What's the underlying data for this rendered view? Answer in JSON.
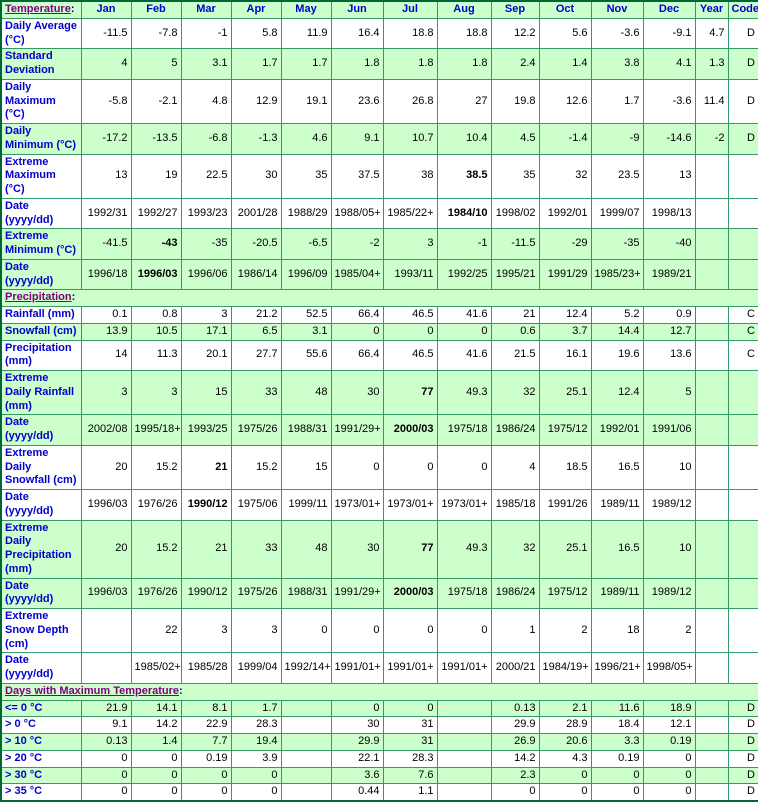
{
  "palette": {
    "row_green": "#CCFFCC",
    "row_white": "#FFFFFF",
    "grid_border": "#339966",
    "outer_border": "#006633",
    "label_blue": "#0000CC",
    "section_link_purple": "#800080",
    "value_black": "#000000"
  },
  "table": {
    "columns": [
      "Jan",
      "Feb",
      "Mar",
      "Apr",
      "May",
      "Jun",
      "Jul",
      "Aug",
      "Sep",
      "Oct",
      "Nov",
      "Dec",
      "Year",
      "Code"
    ],
    "sections": [
      {
        "id": "temperature",
        "title": "Temperature",
        "suffix": ":",
        "rows": [
          {
            "label": "Daily Average (°C)",
            "shade": "white",
            "values": [
              "-11.5",
              "-7.8",
              "-1",
              "5.8",
              "11.9",
              "16.4",
              "18.8",
              "18.8",
              "12.2",
              "5.6",
              "-3.6",
              "-9.1",
              "4.7",
              "D"
            ],
            "bold": []
          },
          {
            "label": "Standard Deviation",
            "shade": "green",
            "values": [
              "4",
              "5",
              "3.1",
              "1.7",
              "1.7",
              "1.8",
              "1.8",
              "1.8",
              "2.4",
              "1.4",
              "3.8",
              "4.1",
              "1.3",
              "D"
            ],
            "bold": []
          },
          {
            "label": "Daily Maximum (°C)",
            "shade": "white",
            "values": [
              "-5.8",
              "-2.1",
              "4.8",
              "12.9",
              "19.1",
              "23.6",
              "26.8",
              "27",
              "19.8",
              "12.6",
              "1.7",
              "-3.6",
              "11.4",
              "D"
            ],
            "bold": []
          },
          {
            "label": "Daily Minimum (°C)",
            "shade": "green",
            "values": [
              "-17.2",
              "-13.5",
              "-6.8",
              "-1.3",
              "4.6",
              "9.1",
              "10.7",
              "10.4",
              "4.5",
              "-1.4",
              "-9",
              "-14.6",
              "-2",
              "D"
            ],
            "bold": []
          },
          {
            "label": "Extreme Maximum (°C)",
            "shade": "white",
            "values": [
              "13",
              "19",
              "22.5",
              "30",
              "35",
              "37.5",
              "38",
              "38.5",
              "35",
              "32",
              "23.5",
              "13",
              "",
              ""
            ],
            "bold": [
              7
            ]
          },
          {
            "label": "Date (yyyy/dd)",
            "shade": "white",
            "values": [
              "1992/31",
              "1992/27",
              "1993/23",
              "2001/28",
              "1988/29",
              "1988/05+",
              "1985/22+",
              "1984/10",
              "1998/02",
              "1992/01",
              "1999/07",
              "1998/13",
              "",
              ""
            ],
            "bold": [
              7
            ]
          },
          {
            "label": "Extreme Minimum (°C)",
            "shade": "green",
            "values": [
              "-41.5",
              "-43",
              "-35",
              "-20.5",
              "-6.5",
              "-2",
              "3",
              "-1",
              "-11.5",
              "-29",
              "-35",
              "-40",
              "",
              ""
            ],
            "bold": [
              1
            ]
          },
          {
            "label": "Date (yyyy/dd)",
            "shade": "green",
            "values": [
              "1996/18",
              "1996/03",
              "1996/06",
              "1986/14",
              "1996/09",
              "1985/04+",
              "1993/11",
              "1992/25",
              "1995/21",
              "1991/29",
              "1985/23+",
              "1989/21",
              "",
              ""
            ],
            "bold": [
              1
            ]
          }
        ]
      },
      {
        "id": "precipitation",
        "title": "Precipitation",
        "suffix": ":",
        "rows": [
          {
            "label": "Rainfall (mm)",
            "shade": "white",
            "values": [
              "0.1",
              "0.8",
              "3",
              "21.2",
              "52.5",
              "66.4",
              "46.5",
              "41.6",
              "21",
              "12.4",
              "5.2",
              "0.9",
              "",
              "C"
            ],
            "bold": []
          },
          {
            "label": "Snowfall (cm)",
            "shade": "green",
            "values": [
              "13.9",
              "10.5",
              "17.1",
              "6.5",
              "3.1",
              "0",
              "0",
              "0",
              "0.6",
              "3.7",
              "14.4",
              "12.7",
              "",
              "C"
            ],
            "bold": []
          },
          {
            "label": "Precipitation (mm)",
            "shade": "white",
            "values": [
              "14",
              "11.3",
              "20.1",
              "27.7",
              "55.6",
              "66.4",
              "46.5",
              "41.6",
              "21.5",
              "16.1",
              "19.6",
              "13.6",
              "",
              "C"
            ],
            "bold": []
          },
          {
            "label": "Extreme Daily Rainfall (mm)",
            "shade": "green",
            "values": [
              "3",
              "3",
              "15",
              "33",
              "48",
              "30",
              "77",
              "49.3",
              "32",
              "25.1",
              "12.4",
              "5",
              "",
              ""
            ],
            "bold": [
              6
            ]
          },
          {
            "label": "Date (yyyy/dd)",
            "shade": "green",
            "values": [
              "2002/08",
              "1995/18+",
              "1993/25",
              "1975/26",
              "1988/31",
              "1991/29+",
              "2000/03",
              "1975/18",
              "1986/24",
              "1975/12",
              "1992/01",
              "1991/06",
              "",
              ""
            ],
            "bold": [
              6
            ]
          },
          {
            "label": "Extreme Daily Snowfall (cm)",
            "shade": "white",
            "values": [
              "20",
              "15.2",
              "21",
              "15.2",
              "15",
              "0",
              "0",
              "0",
              "4",
              "18.5",
              "16.5",
              "10",
              "",
              ""
            ],
            "bold": [
              2
            ]
          },
          {
            "label": "Date (yyyy/dd)",
            "shade": "white",
            "values": [
              "1996/03",
              "1976/26",
              "1990/12",
              "1975/06",
              "1999/11",
              "1973/01+",
              "1973/01+",
              "1973/01+",
              "1985/18",
              "1991/26",
              "1989/11",
              "1989/12",
              "",
              ""
            ],
            "bold": [
              2
            ]
          },
          {
            "label": "Extreme Daily Precipitation (mm)",
            "shade": "green",
            "values": [
              "20",
              "15.2",
              "21",
              "33",
              "48",
              "30",
              "77",
              "49.3",
              "32",
              "25.1",
              "16.5",
              "10",
              "",
              ""
            ],
            "bold": [
              6
            ]
          },
          {
            "label": "Date (yyyy/dd)",
            "shade": "green",
            "values": [
              "1996/03",
              "1976/26",
              "1990/12",
              "1975/26",
              "1988/31",
              "1991/29+",
              "2000/03",
              "1975/18",
              "1986/24",
              "1975/12",
              "1989/11",
              "1989/12",
              "",
              ""
            ],
            "bold": [
              6
            ]
          },
          {
            "label": "Extreme Snow Depth (cm)",
            "shade": "white",
            "values": [
              "",
              "22",
              "3",
              "3",
              "0",
              "0",
              "0",
              "0",
              "1",
              "2",
              "18",
              "2",
              "",
              ""
            ],
            "bold": []
          },
          {
            "label": "Date (yyyy/dd)",
            "shade": "white",
            "values": [
              "",
              "1985/02+",
              "1985/28",
              "1999/04",
              "1992/14+",
              "1991/01+",
              "1991/01+",
              "1991/01+",
              "2000/21",
              "1984/19+",
              "1996/21+",
              "1998/05+",
              "",
              ""
            ],
            "bold": []
          }
        ]
      },
      {
        "id": "days-with-maximum-temperature",
        "title": "Days with Maximum Temperature",
        "suffix": ":",
        "rows": [
          {
            "label": "<= 0 °C",
            "shade": "green",
            "values": [
              "21.9",
              "14.1",
              "8.1",
              "1.7",
              "",
              "0",
              "0",
              "",
              "0.13",
              "2.1",
              "11.6",
              "18.9",
              "",
              "D"
            ],
            "bold": []
          },
          {
            "label": "> 0 °C",
            "shade": "white",
            "values": [
              "9.1",
              "14.2",
              "22.9",
              "28.3",
              "",
              "30",
              "31",
              "",
              "29.9",
              "28.9",
              "18.4",
              "12.1",
              "",
              "D"
            ],
            "bold": []
          },
          {
            "label": "> 10 °C",
            "shade": "green",
            "values": [
              "0.13",
              "1.4",
              "7.7",
              "19.4",
              "",
              "29.9",
              "31",
              "",
              "26.9",
              "20.6",
              "3.3",
              "0.19",
              "",
              "D"
            ],
            "bold": []
          },
          {
            "label": "> 20 °C",
            "shade": "white",
            "values": [
              "0",
              "0",
              "0.19",
              "3.9",
              "",
              "22.1",
              "28.3",
              "",
              "14.2",
              "4.3",
              "0.19",
              "0",
              "",
              "D"
            ],
            "bold": []
          },
          {
            "label": "> 30 °C",
            "shade": "green",
            "values": [
              "0",
              "0",
              "0",
              "0",
              "",
              "3.6",
              "7.6",
              "",
              "2.3",
              "0",
              "0",
              "0",
              "",
              "D"
            ],
            "bold": []
          },
          {
            "label": "> 35 °C",
            "shade": "white",
            "values": [
              "0",
              "0",
              "0",
              "0",
              "",
              "0.44",
              "1.1",
              "",
              "0",
              "0",
              "0",
              "0",
              "",
              "D"
            ],
            "bold": []
          }
        ]
      }
    ]
  }
}
